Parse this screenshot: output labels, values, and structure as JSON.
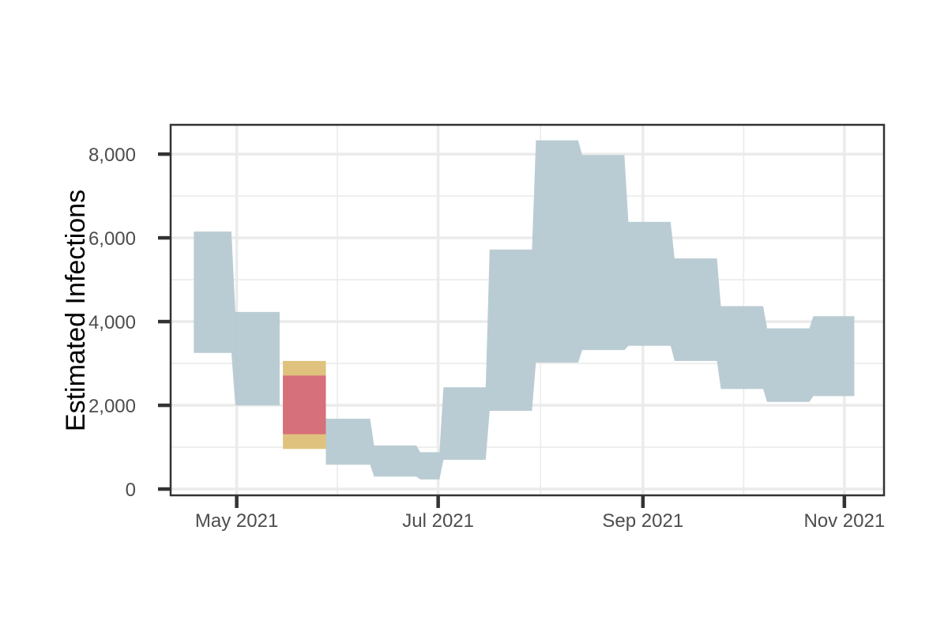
{
  "chart_data": {
    "type": "area",
    "title": "",
    "xlabel": "",
    "ylabel": "Estimated Infections",
    "x_ticks": [
      "2021-05-01",
      "2021-07-01",
      "2021-09-01",
      "2021-11-01"
    ],
    "x_tick_labels": [
      "May 2021",
      "Jul 2021",
      "Sep 2021",
      "Nov 2021"
    ],
    "xlim": [
      "2021-04-11",
      "2021-11-13"
    ],
    "y_ticks": [
      0,
      2000,
      4000,
      6000,
      8000
    ],
    "y_tick_labels": [
      "0",
      "2,000",
      "4,000",
      "6,000",
      "8,000"
    ],
    "ylim": [
      -150,
      8700
    ],
    "grid": true,
    "series": [
      {
        "color": "#b6c9d1",
        "intervals": [
          {
            "start": "2021-04-18",
            "end": "2021-04-30",
            "lower": 3250,
            "upper": 6150
          },
          {
            "start": "2021-04-30",
            "end": "2021-05-14",
            "lower": 2000,
            "upper": 4230
          },
          {
            "start": "2021-05-28",
            "end": "2021-06-11",
            "lower": 580,
            "upper": 1680
          },
          {
            "start": "2021-06-11",
            "end": "2021-06-25",
            "lower": 300,
            "upper": 1040
          },
          {
            "start": "2021-06-25",
            "end": "2021-07-02",
            "lower": 230,
            "upper": 880
          },
          {
            "start": "2021-07-02",
            "end": "2021-07-16",
            "lower": 700,
            "upper": 2430
          },
          {
            "start": "2021-07-16",
            "end": "2021-07-30",
            "lower": 1870,
            "upper": 5720
          },
          {
            "start": "2021-07-30",
            "end": "2021-08-13",
            "lower": 3020,
            "upper": 8330
          },
          {
            "start": "2021-08-13",
            "end": "2021-08-27",
            "lower": 3320,
            "upper": 7980
          },
          {
            "start": "2021-08-27",
            "end": "2021-09-10",
            "lower": 3420,
            "upper": 6380
          },
          {
            "start": "2021-09-10",
            "end": "2021-09-24",
            "lower": 3060,
            "upper": 5510
          },
          {
            "start": "2021-09-24",
            "end": "2021-10-08",
            "lower": 2390,
            "upper": 4370
          },
          {
            "start": "2021-10-08",
            "end": "2021-10-22",
            "lower": 2080,
            "upper": 3840
          },
          {
            "start": "2021-10-22",
            "end": "2021-11-04",
            "lower": 2220,
            "upper": 4130
          }
        ]
      },
      {
        "color": "#dfc27d",
        "intervals": [
          {
            "start": "2021-05-15",
            "end": "2021-05-28",
            "lower": 960,
            "upper": 3060
          }
        ]
      },
      {
        "color": "#d6707a",
        "intervals": [
          {
            "start": "2021-05-15",
            "end": "2021-05-28",
            "lower": 1310,
            "upper": 2710
          }
        ]
      }
    ]
  }
}
